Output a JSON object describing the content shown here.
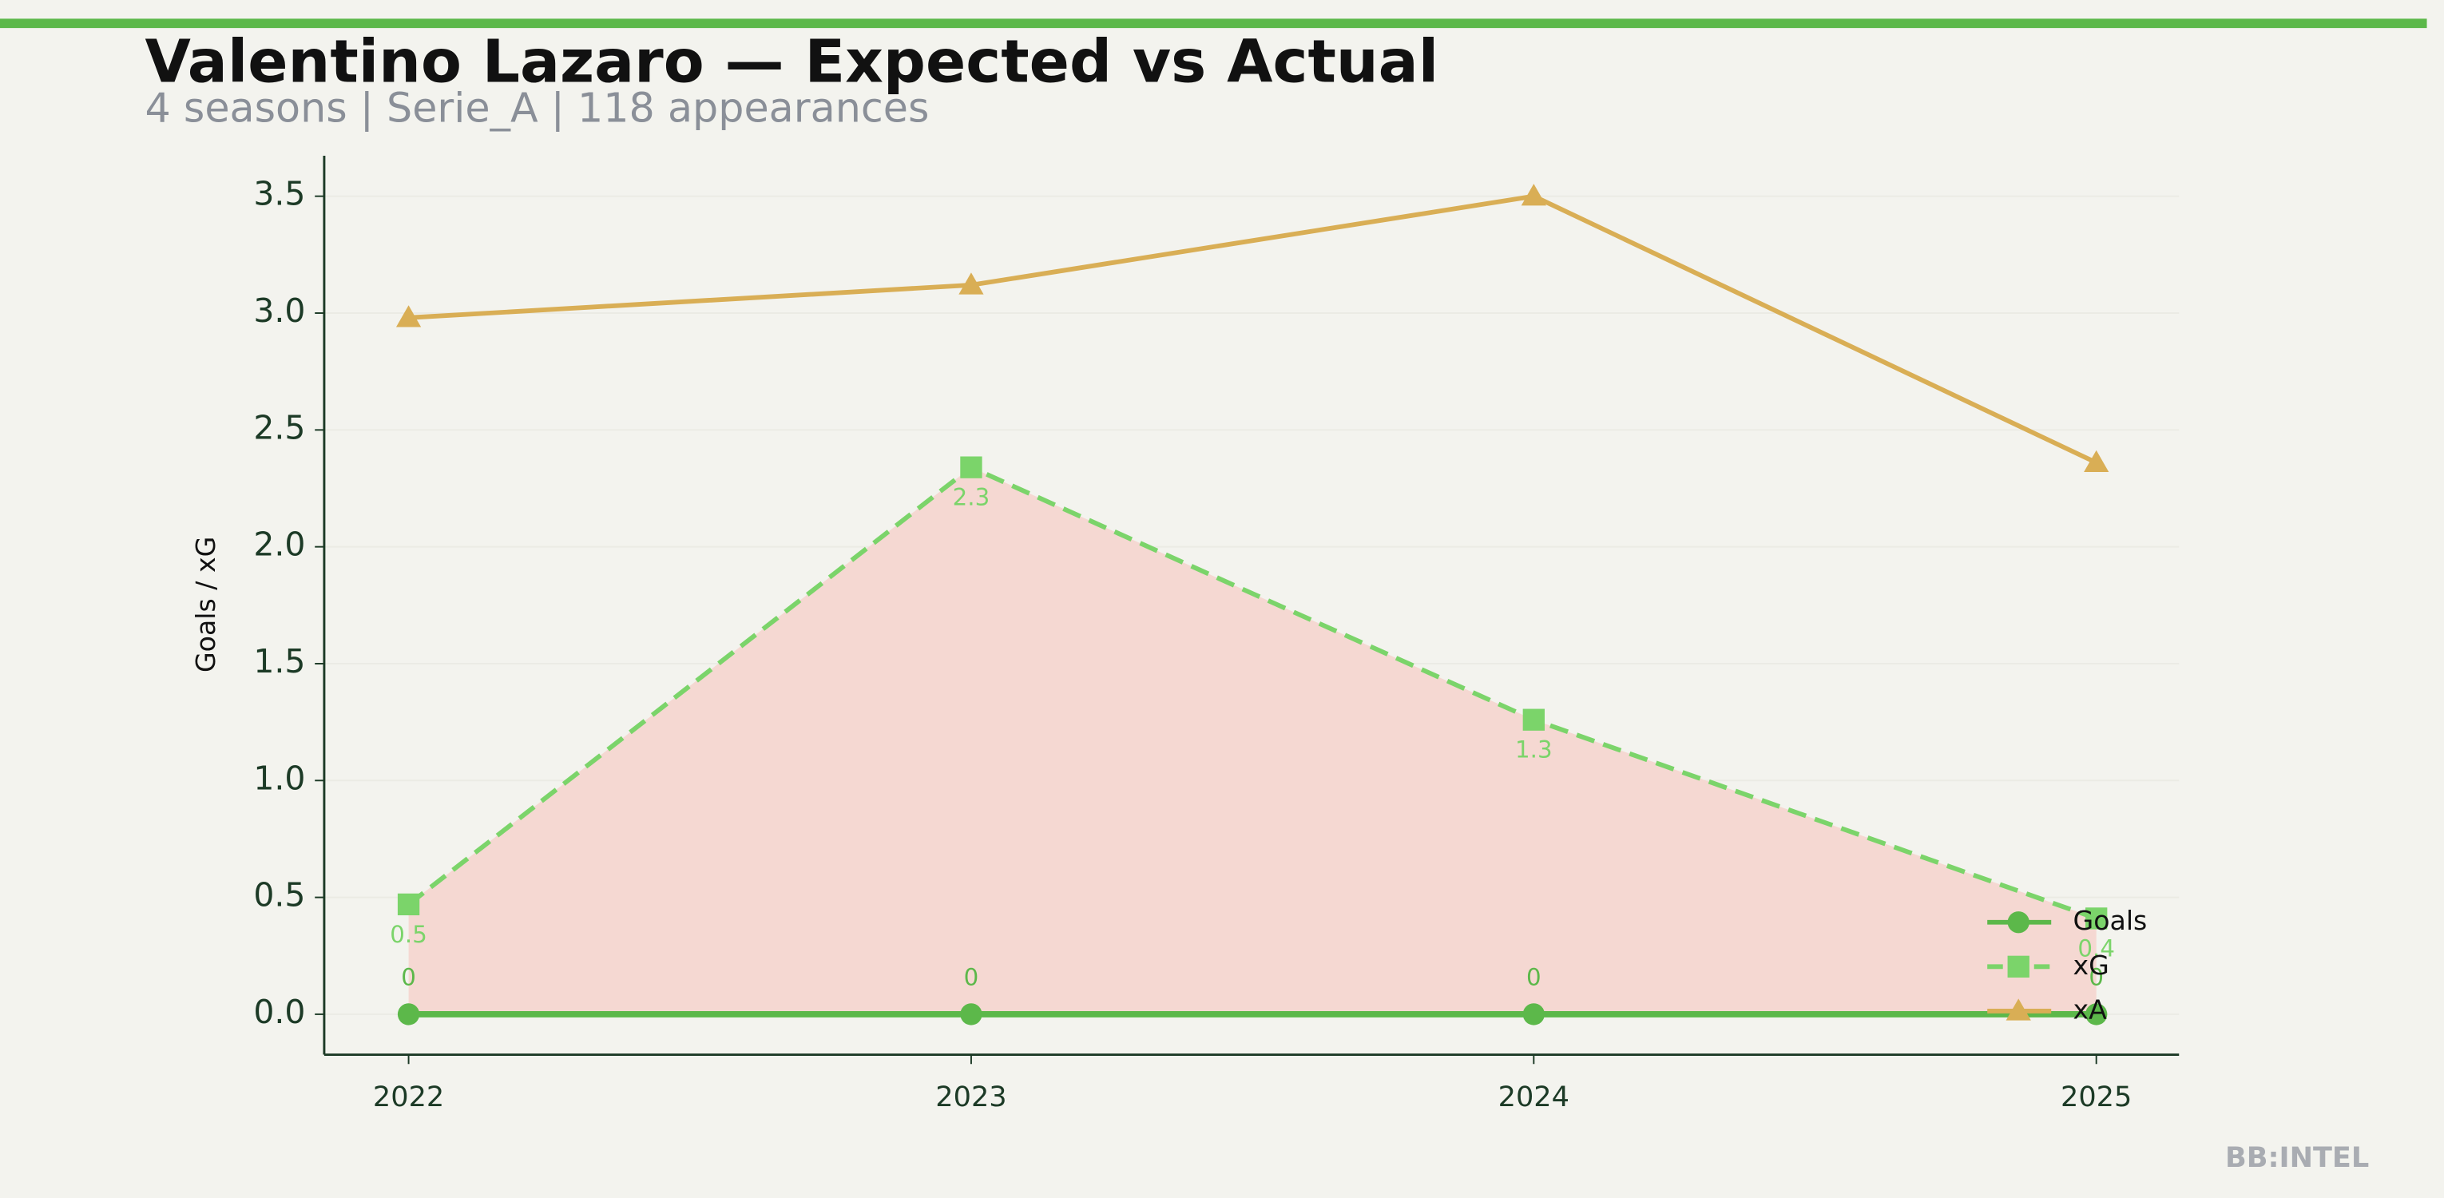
{
  "chart_data": {
    "type": "line",
    "title": "Valentino Lazaro — Expected vs Actual",
    "subtitle": "4 seasons | Serie_A | 118 appearances",
    "y_label": "Goals / xG",
    "watermark": "BB:INTEL",
    "x": [
      2022,
      2023,
      2024,
      2025
    ],
    "xlim": [
      2021.85,
      2025.147
    ],
    "xticks": [
      2022,
      2023,
      2024,
      2025
    ],
    "ylim": [
      -0.173,
      3.673
    ],
    "yticks": [
      {
        "value": 0,
        "label": "0.0"
      },
      {
        "value": 0.5,
        "label": "0.5"
      },
      {
        "value": 1,
        "label": "1.0"
      },
      {
        "value": 1.5,
        "label": "1.5"
      },
      {
        "value": 2,
        "label": "2.0"
      },
      {
        "value": 2.5,
        "label": "2.5"
      },
      {
        "value": 3,
        "label": "3.0"
      },
      {
        "value": 3.5,
        "label": "3.5"
      }
    ],
    "grid": true,
    "legend": "lower right",
    "fill_between_color": "#f5d8d2",
    "series": [
      {
        "name": "Goals",
        "color": "#5cb84a",
        "marker": "circle",
        "dash": false,
        "values": [
          0,
          0,
          0,
          0
        ],
        "show_labels": true
      },
      {
        "name": "xG",
        "color": "#7bd46a",
        "marker": "square",
        "dash": true,
        "values": [
          0.47,
          2.34,
          1.26,
          0.41
        ],
        "value_labels": [
          "0.5",
          "2.3",
          "1.3",
          "0.4"
        ],
        "show_labels": true
      },
      {
        "name": "xA",
        "color": "#d9ae55",
        "marker": "triangle",
        "dash": false,
        "values": [
          2.98,
          3.12,
          3.5,
          2.36
        ],
        "show_labels": false
      }
    ]
  }
}
